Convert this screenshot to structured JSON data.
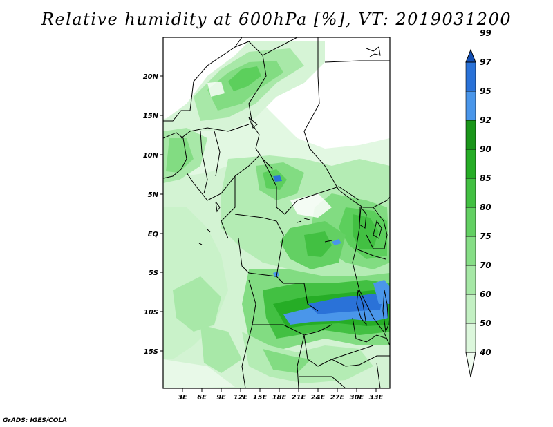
{
  "title": "Relative humidity at 600hPa [%], VT: 2019031200",
  "footer": "GrADS: IGES/COLA",
  "map": {
    "lon_range": [
      0,
      35
    ],
    "lat_range": [
      -20,
      25
    ],
    "x_ticks": [
      "3E",
      "6E",
      "9E",
      "12E",
      "15E",
      "18E",
      "21E",
      "24E",
      "27E",
      "30E",
      "33E"
    ],
    "y_ticks": [
      "20N",
      "15N",
      "10N",
      "5N",
      "EQ",
      "5S",
      "10S",
      "15S"
    ]
  },
  "colorbar": {
    "levels": [
      "40",
      "50",
      "60",
      "70",
      "75",
      "80",
      "85",
      "90",
      "92",
      "95",
      "97",
      "99"
    ],
    "colors": [
      "#f0fcf0",
      "#dcf7dc",
      "#c3f0c3",
      "#a6e8a6",
      "#86de86",
      "#63d063",
      "#42c042",
      "#26ad26",
      "#1a961a",
      "#4a96ea",
      "#2a72d8",
      "#1450b4"
    ]
  }
}
